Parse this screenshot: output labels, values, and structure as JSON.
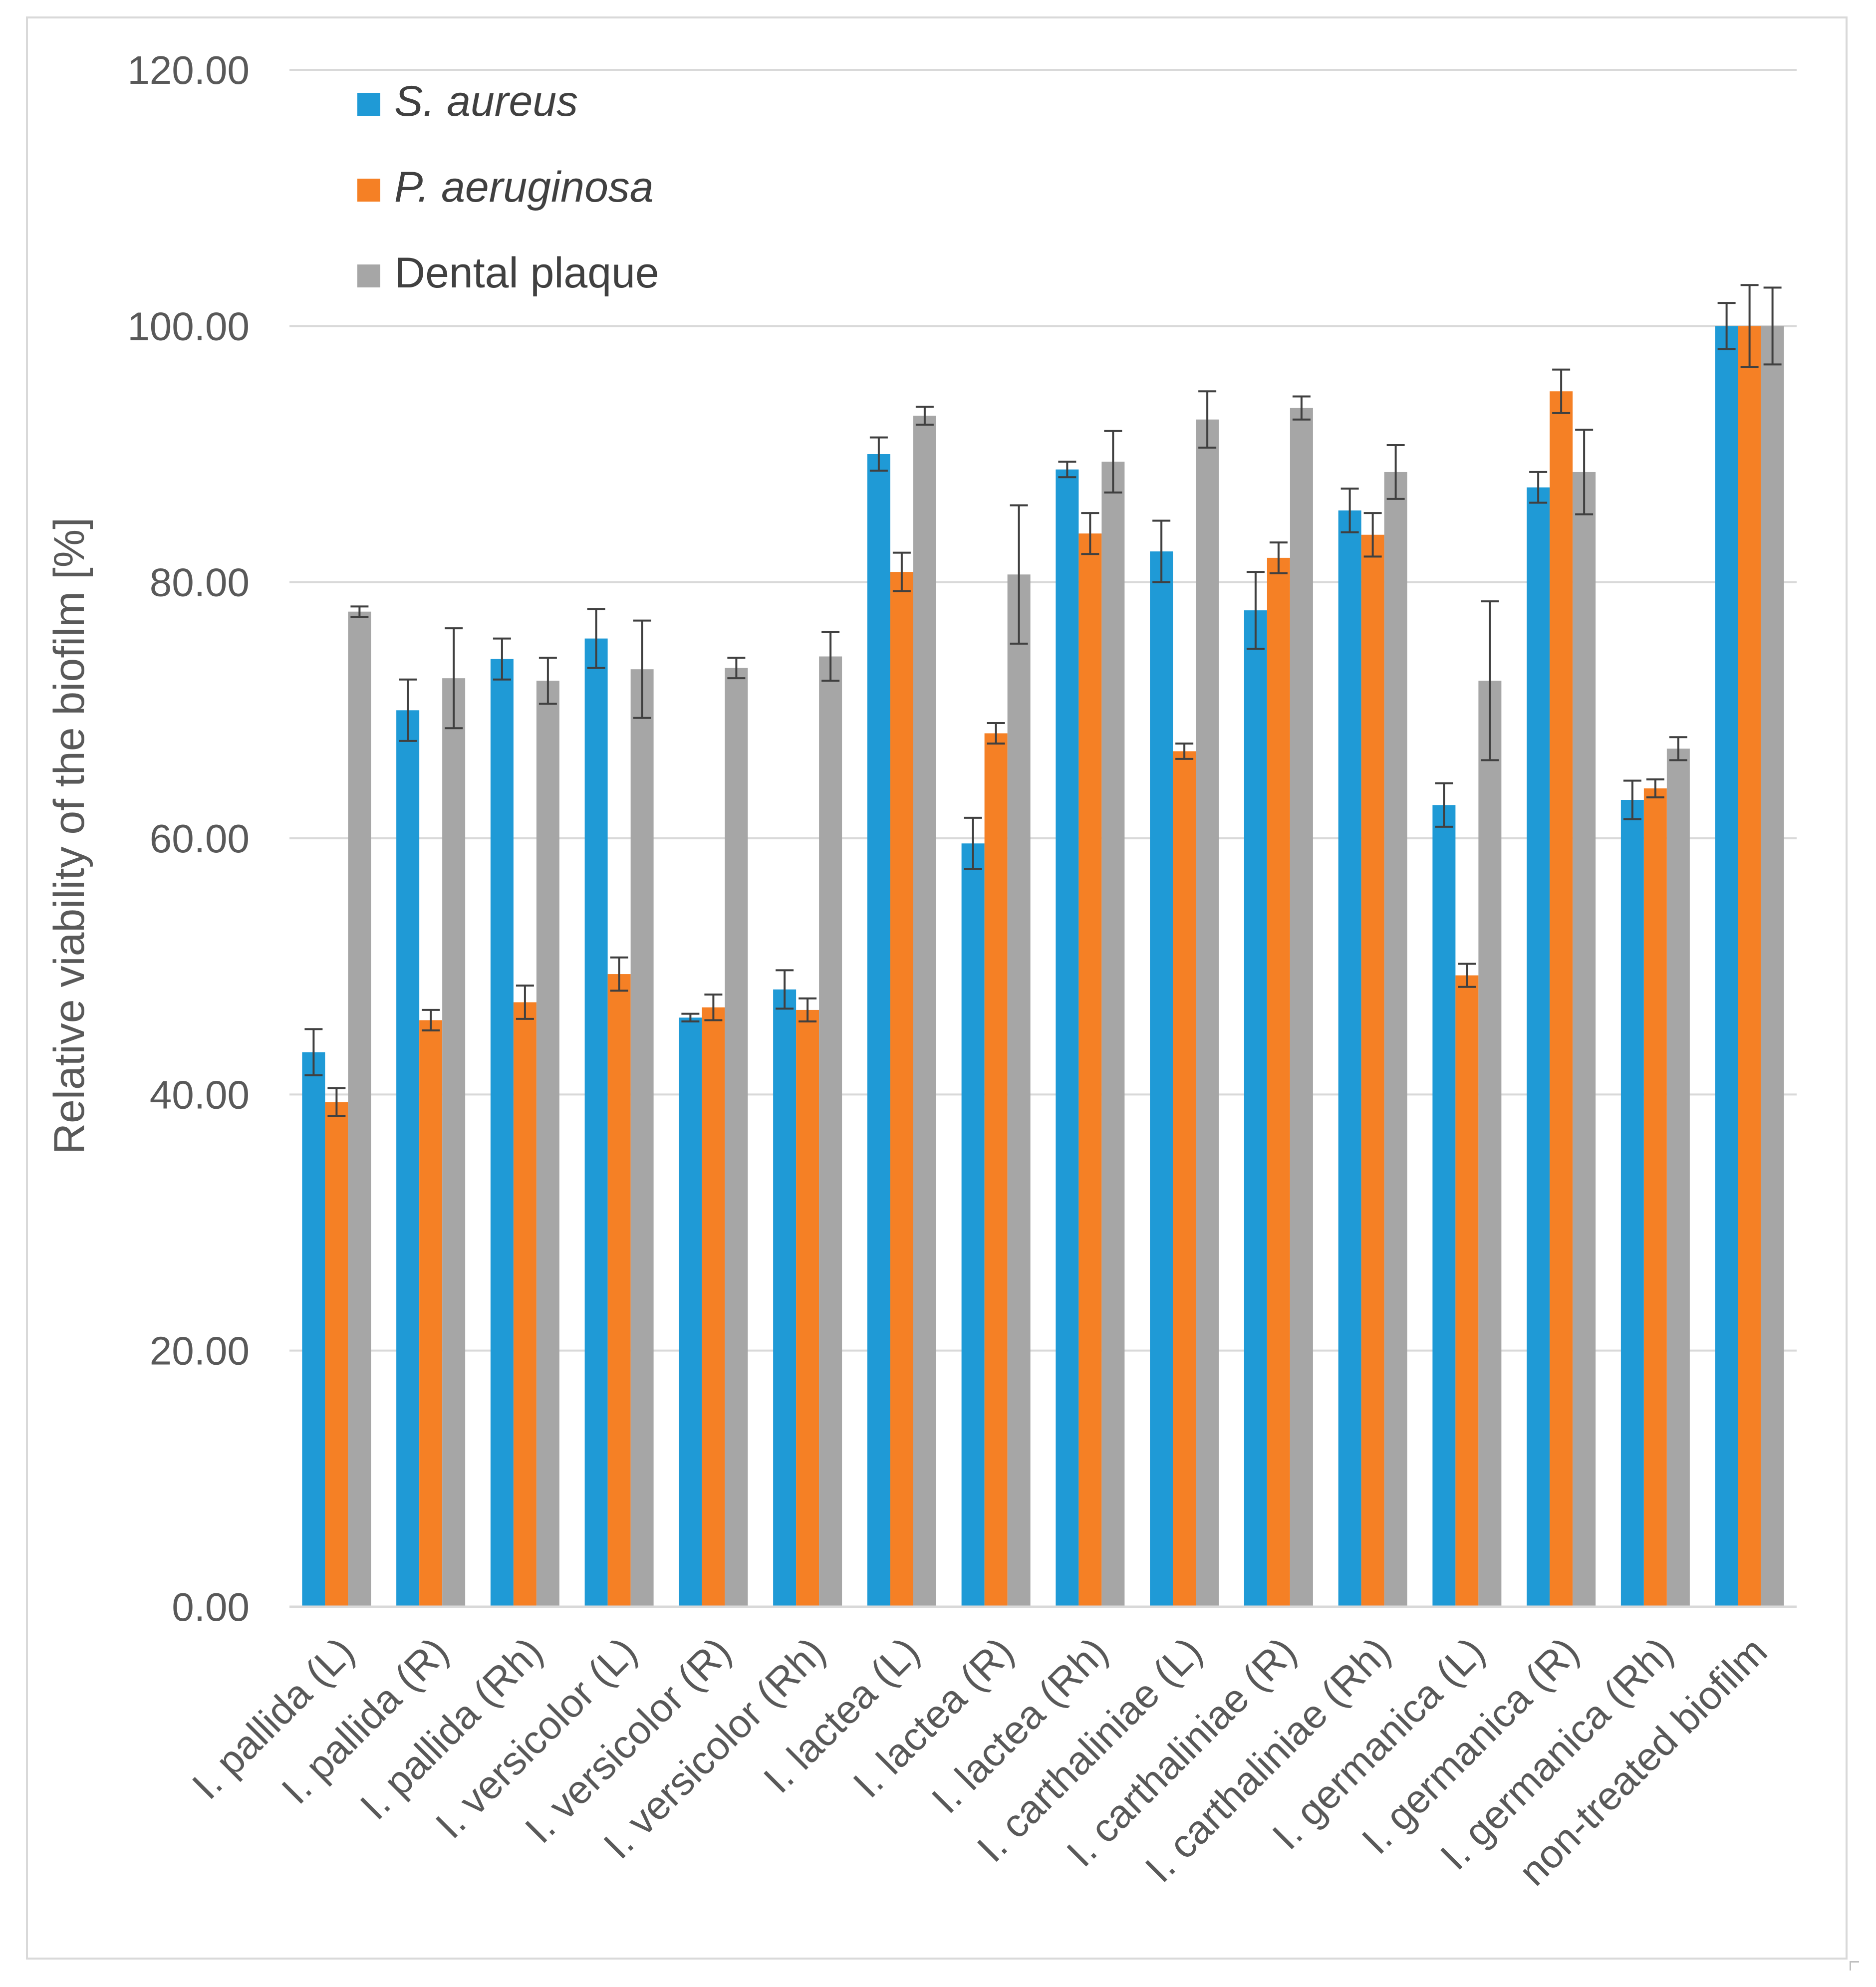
{
  "chart_data": {
    "type": "bar",
    "title": "",
    "xlabel": "",
    "ylabel": "Relative viability of the biofilm [%]",
    "ylim": [
      0,
      120
    ],
    "yticks": [
      "0.00",
      "20.00",
      "40.00",
      "60.00",
      "80.00",
      "100.00",
      "120.00"
    ],
    "grid": true,
    "legend_position": "top-left",
    "categories": [
      "I. pallida (L)",
      "I. pallida (R)",
      "I. pallida (Rh)",
      "I. versicolor (L)",
      "I. versicolor (R)",
      "I. versicolor (Rh)",
      "I. lactea (L)",
      "I. lactea (R)",
      "I. lactea (Rh)",
      "I. carthaliniae (L)",
      "I. carthaliniae (R)",
      "I. carthaliniae (Rh)",
      "I. germanica (L)",
      "I. germanica (R)",
      "I. germanica (Rh)",
      "non-treated biofilm"
    ],
    "series": [
      {
        "name": "S. aureus",
        "italic": true,
        "color": "#1f9ad6",
        "values": [
          43.3,
          70.0,
          74.0,
          75.6,
          46.0,
          48.2,
          90.0,
          59.6,
          88.8,
          82.4,
          77.8,
          85.6,
          62.6,
          87.4,
          63.0,
          100.0
        ],
        "errors": [
          1.8,
          2.4,
          1.6,
          2.3,
          0.3,
          1.5,
          1.3,
          2.0,
          0.6,
          2.4,
          3.0,
          1.7,
          1.7,
          1.2,
          1.5,
          1.8
        ]
      },
      {
        "name": "P. aeruginosa",
        "italic": true,
        "color": "#f58025",
        "values": [
          39.4,
          45.8,
          47.2,
          49.4,
          46.8,
          46.6,
          80.8,
          68.2,
          83.8,
          66.8,
          81.9,
          83.7,
          49.3,
          94.9,
          63.9,
          100.0
        ],
        "errors": [
          1.1,
          0.8,
          1.3,
          1.3,
          1.0,
          0.9,
          1.5,
          0.8,
          1.6,
          0.6,
          1.2,
          1.7,
          0.9,
          1.7,
          0.7,
          3.2
        ]
      },
      {
        "name": "Dental plaque",
        "italic": false,
        "color": "#a6a6a6",
        "values": [
          77.7,
          72.5,
          72.3,
          73.2,
          73.3,
          74.2,
          93.0,
          80.6,
          89.4,
          92.7,
          93.6,
          88.6,
          72.3,
          88.6,
          67.0,
          100.0
        ],
        "errors": [
          0.4,
          3.9,
          1.8,
          3.8,
          0.8,
          1.9,
          0.7,
          5.4,
          2.4,
          2.2,
          0.9,
          2.1,
          6.2,
          3.3,
          0.9,
          3.0
        ]
      }
    ]
  }
}
